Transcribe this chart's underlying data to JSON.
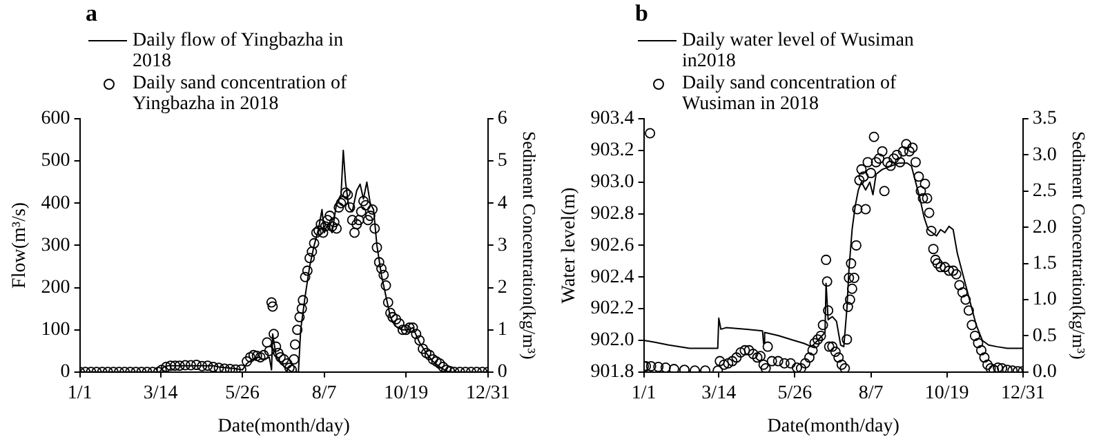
{
  "chart_data": [
    {
      "type": "line",
      "title": "a",
      "xlabel": "Date(month/day)",
      "ylabel": "Flow(m³/s)",
      "y2label": "Sediment Concentration(kg/m³)",
      "legend": "top left",
      "grid": false,
      "xlim": [
        "--01-01",
        "--12-31"
      ],
      "xticks": [
        {
          "value": "--01-01",
          "label": "1/1"
        },
        {
          "value": "--03-14",
          "label": "3/14"
        },
        {
          "value": "--05-26",
          "label": "5/26"
        },
        {
          "value": "--08-07",
          "label": "8/7"
        },
        {
          "value": "--10-19",
          "label": "10/19"
        },
        {
          "value": "--12-31",
          "label": "12/31"
        }
      ],
      "ylim": [
        0,
        600
      ],
      "yticks": [
        0,
        100,
        200,
        300,
        400,
        500,
        600
      ],
      "y2lim": [
        0,
        6
      ],
      "y2ticks": [
        0,
        1,
        2,
        3,
        4,
        5,
        6
      ],
      "series": [
        {
          "name": "Daily flow of Yingbazha in 2018",
          "color": "#000000",
          "line_style": "solid",
          "x": [
            "--01-01",
            "--03-13",
            "--03-17",
            "--03-21",
            "--04-30",
            "--05-05",
            "--05-20",
            "--05-26",
            "--05-30",
            "--06-04",
            "--06-09",
            "--06-14",
            "--06-19",
            "--06-21",
            "--06-22",
            "--06-25",
            "--06-29",
            "--07-04",
            "--07-09",
            "--07-15",
            "--07-17",
            "--07-21",
            "--07-25",
            "--07-29",
            "--08-02",
            "--08-05",
            "--08-07",
            "--08-10",
            "--08-14",
            "--08-18",
            "--08-22",
            "--08-24",
            "--08-26",
            "--08-29",
            "--09-01",
            "--09-05",
            "--09-08",
            "--09-11",
            "--09-14",
            "--09-17",
            "--09-20",
            "--09-23",
            "--09-27",
            "--10-01",
            "--10-05",
            "--10-09",
            "--10-15",
            "--10-21",
            "--10-25",
            "--10-31",
            "--11-06",
            "--11-12",
            "--11-18",
            "--11-24",
            "--11-28",
            "--12-31"
          ],
          "values": [
            0,
            0,
            12,
            15,
            15,
            12,
            8,
            5,
            20,
            30,
            35,
            30,
            35,
            5,
            90,
            40,
            20,
            10,
            0,
            0,
            100,
            180,
            250,
            300,
            340,
            385,
            330,
            350,
            330,
            400,
            420,
            525,
            450,
            390,
            380,
            430,
            445,
            410,
            450,
            400,
            385,
            300,
            230,
            180,
            130,
            110,
            100,
            100,
            105,
            70,
            45,
            25,
            12,
            2,
            0,
            0
          ]
        },
        {
          "name": "Daily sand concentration of Yingbazha in 2018",
          "type": "scatter",
          "axis": "y2",
          "marker": "circle",
          "color": "#000000",
          "x": [
            "--01-01",
            "--01-06",
            "--01-11",
            "--01-16",
            "--01-21",
            "--01-26",
            "--01-31",
            "--02-05",
            "--02-10",
            "--02-15",
            "--02-20",
            "--02-25",
            "--03-02",
            "--03-07",
            "--03-12",
            "--03-15",
            "--03-19",
            "--03-23",
            "--03-27",
            "--03-31",
            "--04-05",
            "--04-10",
            "--04-15",
            "--04-20",
            "--04-25",
            "--04-30",
            "--05-05",
            "--05-10",
            "--05-15",
            "--05-20",
            "--05-25",
            "--05-30",
            "--06-02",
            "--06-05",
            "--06-08",
            "--06-11",
            "--06-14",
            "--06-17",
            "--06-19",
            "--06-21",
            "--06-22",
            "--06-23",
            "--06-25",
            "--06-27",
            "--06-29",
            "--07-02",
            "--07-05",
            "--07-07",
            "--07-09",
            "--07-11",
            "--07-12",
            "--07-14",
            "--07-16",
            "--07-18",
            "--07-19",
            "--07-21",
            "--07-23",
            "--07-25",
            "--07-27",
            "--07-29",
            "--07-31",
            "--08-02",
            "--08-04",
            "--08-06",
            "--08-08",
            "--08-10",
            "--08-12",
            "--08-14",
            "--08-16",
            "--08-18",
            "--08-20",
            "--08-22",
            "--08-24",
            "--08-26",
            "--08-28",
            "--08-30",
            "--09-01",
            "--09-03",
            "--09-05",
            "--09-07",
            "--09-09",
            "--09-11",
            "--09-13",
            "--09-15",
            "--09-17",
            "--09-19",
            "--09-21",
            "--09-23",
            "--09-25",
            "--09-27",
            "--09-29",
            "--10-01",
            "--10-03",
            "--10-05",
            "--10-07",
            "--10-10",
            "--10-13",
            "--10-16",
            "--10-19",
            "--10-22",
            "--10-25",
            "--10-28",
            "--10-31",
            "--11-03",
            "--11-06",
            "--11-09",
            "--11-12",
            "--11-15",
            "--11-18",
            "--11-21",
            "--11-24",
            "--11-27",
            "--12-01",
            "--12-06",
            "--12-11",
            "--12-16",
            "--12-21",
            "--12-26",
            "--12-31"
          ],
          "values": [
            0,
            0,
            0,
            0,
            0,
            0,
            0,
            0,
            0,
            0,
            0,
            0,
            0,
            0,
            0,
            0.05,
            0.12,
            0.15,
            0.15,
            0.15,
            0.16,
            0.16,
            0.17,
            0.14,
            0.15,
            0.12,
            0.1,
            0.08,
            0.07,
            0.06,
            0.06,
            0.25,
            0.35,
            0.4,
            0.38,
            0.35,
            0.4,
            0.7,
            0.5,
            1.65,
            1.55,
            0.9,
            0.6,
            0.45,
            0.35,
            0.3,
            0.2,
            0.1,
            0.05,
            0.3,
            0.65,
            1.0,
            1.3,
            1.5,
            1.7,
            2.25,
            2.4,
            2.7,
            2.85,
            3.05,
            3.3,
            3.35,
            3.5,
            3.3,
            3.45,
            3.6,
            3.7,
            3.45,
            3.55,
            3.4,
            3.9,
            4.0,
            4.05,
            4.25,
            4.2,
            3.9,
            3.6,
            3.3,
            3.5,
            3.6,
            3.8,
            4.05,
            3.95,
            3.6,
            3.7,
            3.85,
            3.4,
            2.95,
            2.6,
            2.45,
            2.3,
            2.05,
            1.65,
            1.4,
            1.3,
            1.25,
            1.15,
            1.0,
            1.0,
            1.05,
            1.05,
            0.9,
            0.75,
            0.55,
            0.45,
            0.4,
            0.3,
            0.25,
            0.2,
            0.12,
            0.05,
            0.02,
            0,
            0,
            0,
            0,
            0,
            0,
            0
          ]
        }
      ]
    },
    {
      "type": "line",
      "title": "b",
      "xlabel": "Date(month/day)",
      "ylabel": "Water level(m)",
      "y2label": "Sediment Concentration(kg/m³)",
      "legend": "top left",
      "grid": false,
      "xlim": [
        "--01-01",
        "--12-31"
      ],
      "xticks": [
        {
          "value": "--01-01",
          "label": "1/1"
        },
        {
          "value": "--03-14",
          "label": "3/14"
        },
        {
          "value": "--05-26",
          "label": "5/26"
        },
        {
          "value": "--08-07",
          "label": "8/7"
        },
        {
          "value": "--10-19",
          "label": "10/19"
        },
        {
          "value": "--12-31",
          "label": "12/31"
        }
      ],
      "ylim": [
        901.8,
        903.4
      ],
      "yticks": [
        901.8,
        {
          "value": 902,
          "label": "902.0"
        },
        902.2,
        902.4,
        902.6,
        902.8,
        {
          "value": 903,
          "label": "903.0"
        },
        903.2,
        903.4
      ],
      "y2lim": [
        0,
        3.5
      ],
      "y2ticks": [
        {
          "value": 0,
          "label": "0.0"
        },
        0.5,
        {
          "value": 1,
          "label": "1.0"
        },
        1.5,
        {
          "value": 2,
          "label": "2.0"
        },
        2.5,
        {
          "value": 3,
          "label": "3.0"
        },
        3.5
      ],
      "series": [
        {
          "name": "Daily water level of Wusiman in2018",
          "color": "#000000",
          "line_style": "solid",
          "x": [
            "--01-01",
            "--01-10",
            "--01-25",
            "--02-14",
            "--03-13",
            "--03-14",
            "--03-16",
            "--03-21",
            "--04-10",
            "--04-25",
            "--04-26",
            "--04-27",
            "--05-10",
            "--05-25",
            "--06-04",
            "--06-11",
            "--06-17",
            "--06-24",
            "--06-25",
            "--06-27",
            "--07-01",
            "--07-05",
            "--07-09",
            "--07-12",
            "--07-15",
            "--07-17",
            "--07-20",
            "--07-23",
            "--07-26",
            "--07-29",
            "--08-02",
            "--08-06",
            "--08-09",
            "--08-12",
            "--08-18",
            "--08-26",
            "--09-03",
            "--09-11",
            "--09-15",
            "--09-19",
            "--09-23",
            "--09-27",
            "--10-01",
            "--10-05",
            "--10-09",
            "--10-13",
            "--10-17",
            "--10-21",
            "--10-25",
            "--10-29",
            "--11-04",
            "--11-10",
            "--11-16",
            "--11-22",
            "--11-28",
            "--12-06",
            "--12-16",
            "--12-31"
          ],
          "values": [
            902.0,
            901.99,
            901.97,
            901.95,
            901.95,
            902.14,
            902.07,
            902.08,
            902.07,
            902.06,
            901.98,
            902.05,
            902.03,
            902.0,
            901.98,
            901.96,
            902.0,
            902.05,
            902.36,
            902.13,
            902.15,
            902.12,
            901.97,
            901.96,
            902.2,
            902.45,
            902.7,
            902.85,
            902.95,
            903.0,
            902.95,
            903.0,
            902.92,
            903.05,
            903.08,
            903.1,
            903.12,
            903.12,
            903.1,
            903.0,
            902.9,
            902.78,
            902.7,
            902.68,
            902.66,
            902.7,
            902.68,
            902.72,
            902.7,
            902.55,
            902.4,
            902.25,
            902.1,
            902.0,
            901.97,
            901.96,
            901.95,
            901.95
          ]
        },
        {
          "name": "Daily sand concentration of Wusiman in 2018",
          "type": "scatter",
          "axis": "y2",
          "marker": "circle",
          "color": "#000000",
          "x": [
            "--01-01",
            "--01-03",
            "--01-07",
            "--01-08",
            "--01-15",
            "--01-22",
            "--01-30",
            "--02-09",
            "--02-19",
            "--03-01",
            "--03-13",
            "--03-15",
            "--03-19",
            "--03-23",
            "--03-27",
            "--03-31",
            "--04-04",
            "--04-08",
            "--04-12",
            "--04-16",
            "--04-20",
            "--04-23",
            "--04-26",
            "--04-28",
            "--04-30",
            "--05-04",
            "--05-10",
            "--05-16",
            "--05-22",
            "--05-28",
            "--06-01",
            "--06-05",
            "--06-09",
            "--06-12",
            "--06-14",
            "--06-17",
            "--06-20",
            "--06-22",
            "--06-25",
            "--06-26",
            "--06-27",
            "--06-28",
            "--07-01",
            "--07-04",
            "--07-07",
            "--07-10",
            "--07-13",
            "--07-15",
            "--07-16",
            "--07-17",
            "--07-18",
            "--07-19",
            "--07-20",
            "--07-22",
            "--07-24",
            "--07-25",
            "--07-27",
            "--07-29",
            "--07-31",
            "--08-02",
            "--08-04",
            "--08-07",
            "--08-10",
            "--08-12",
            "--08-15",
            "--08-18",
            "--08-20",
            "--08-23",
            "--08-26",
            "--08-29",
            "--09-01",
            "--09-04",
            "--09-07",
            "--09-10",
            "--09-13",
            "--09-16",
            "--09-19",
            "--09-22",
            "--09-24",
            "--09-26",
            "--09-28",
            "--09-30",
            "--10-02",
            "--10-04",
            "--10-06",
            "--10-08",
            "--10-10",
            "--10-13",
            "--10-17",
            "--10-21",
            "--10-25",
            "--10-28",
            "--10-31",
            "--11-03",
            "--11-06",
            "--11-09",
            "--11-12",
            "--11-15",
            "--11-18",
            "--11-21",
            "--11-24",
            "--11-27",
            "--11-30",
            "--12-03",
            "--12-07",
            "--12-11",
            "--12-16",
            "--12-21",
            "--12-26",
            "--12-31"
          ],
          "values": [
            0.08,
            0.08,
            3.3,
            0.08,
            0.07,
            0.06,
            0.04,
            0.03,
            0.02,
            0.02,
            0.02,
            0.15,
            0.1,
            0.12,
            0.15,
            0.2,
            0.27,
            0.3,
            0.3,
            0.25,
            0.2,
            0.22,
            0.1,
            0.05,
            0.35,
            0.15,
            0.15,
            0.12,
            0.12,
            0.06,
            0.05,
            0.12,
            0.2,
            0.3,
            0.4,
            0.45,
            0.5,
            0.65,
            1.55,
            1.25,
            0.85,
            0.35,
            0.35,
            0.28,
            0.2,
            0.1,
            0.05,
            0.45,
            0.9,
            1.3,
            1.0,
            1.5,
            1.15,
            1.3,
            1.75,
            2.25,
            2.65,
            2.8,
            2.7,
            2.25,
            2.9,
            2.75,
            3.25,
            2.9,
            2.95,
            3.05,
            2.5,
            2.9,
            2.85,
            2.95,
            3.0,
            2.9,
            3.05,
            3.15,
            3.05,
            3.1,
            2.9,
            2.7,
            2.5,
            2.4,
            2.6,
            2.4,
            2.2,
            1.95,
            1.7,
            1.55,
            1.5,
            1.45,
            1.45,
            1.4,
            1.4,
            1.35,
            1.2,
            1.1,
            1.0,
            0.85,
            0.65,
            0.5,
            0.4,
            0.3,
            0.2,
            0.1,
            0.05,
            0.03,
            0.06,
            0.05,
            0.03,
            0.02,
            0.01,
            0.01
          ]
        }
      ]
    }
  ]
}
